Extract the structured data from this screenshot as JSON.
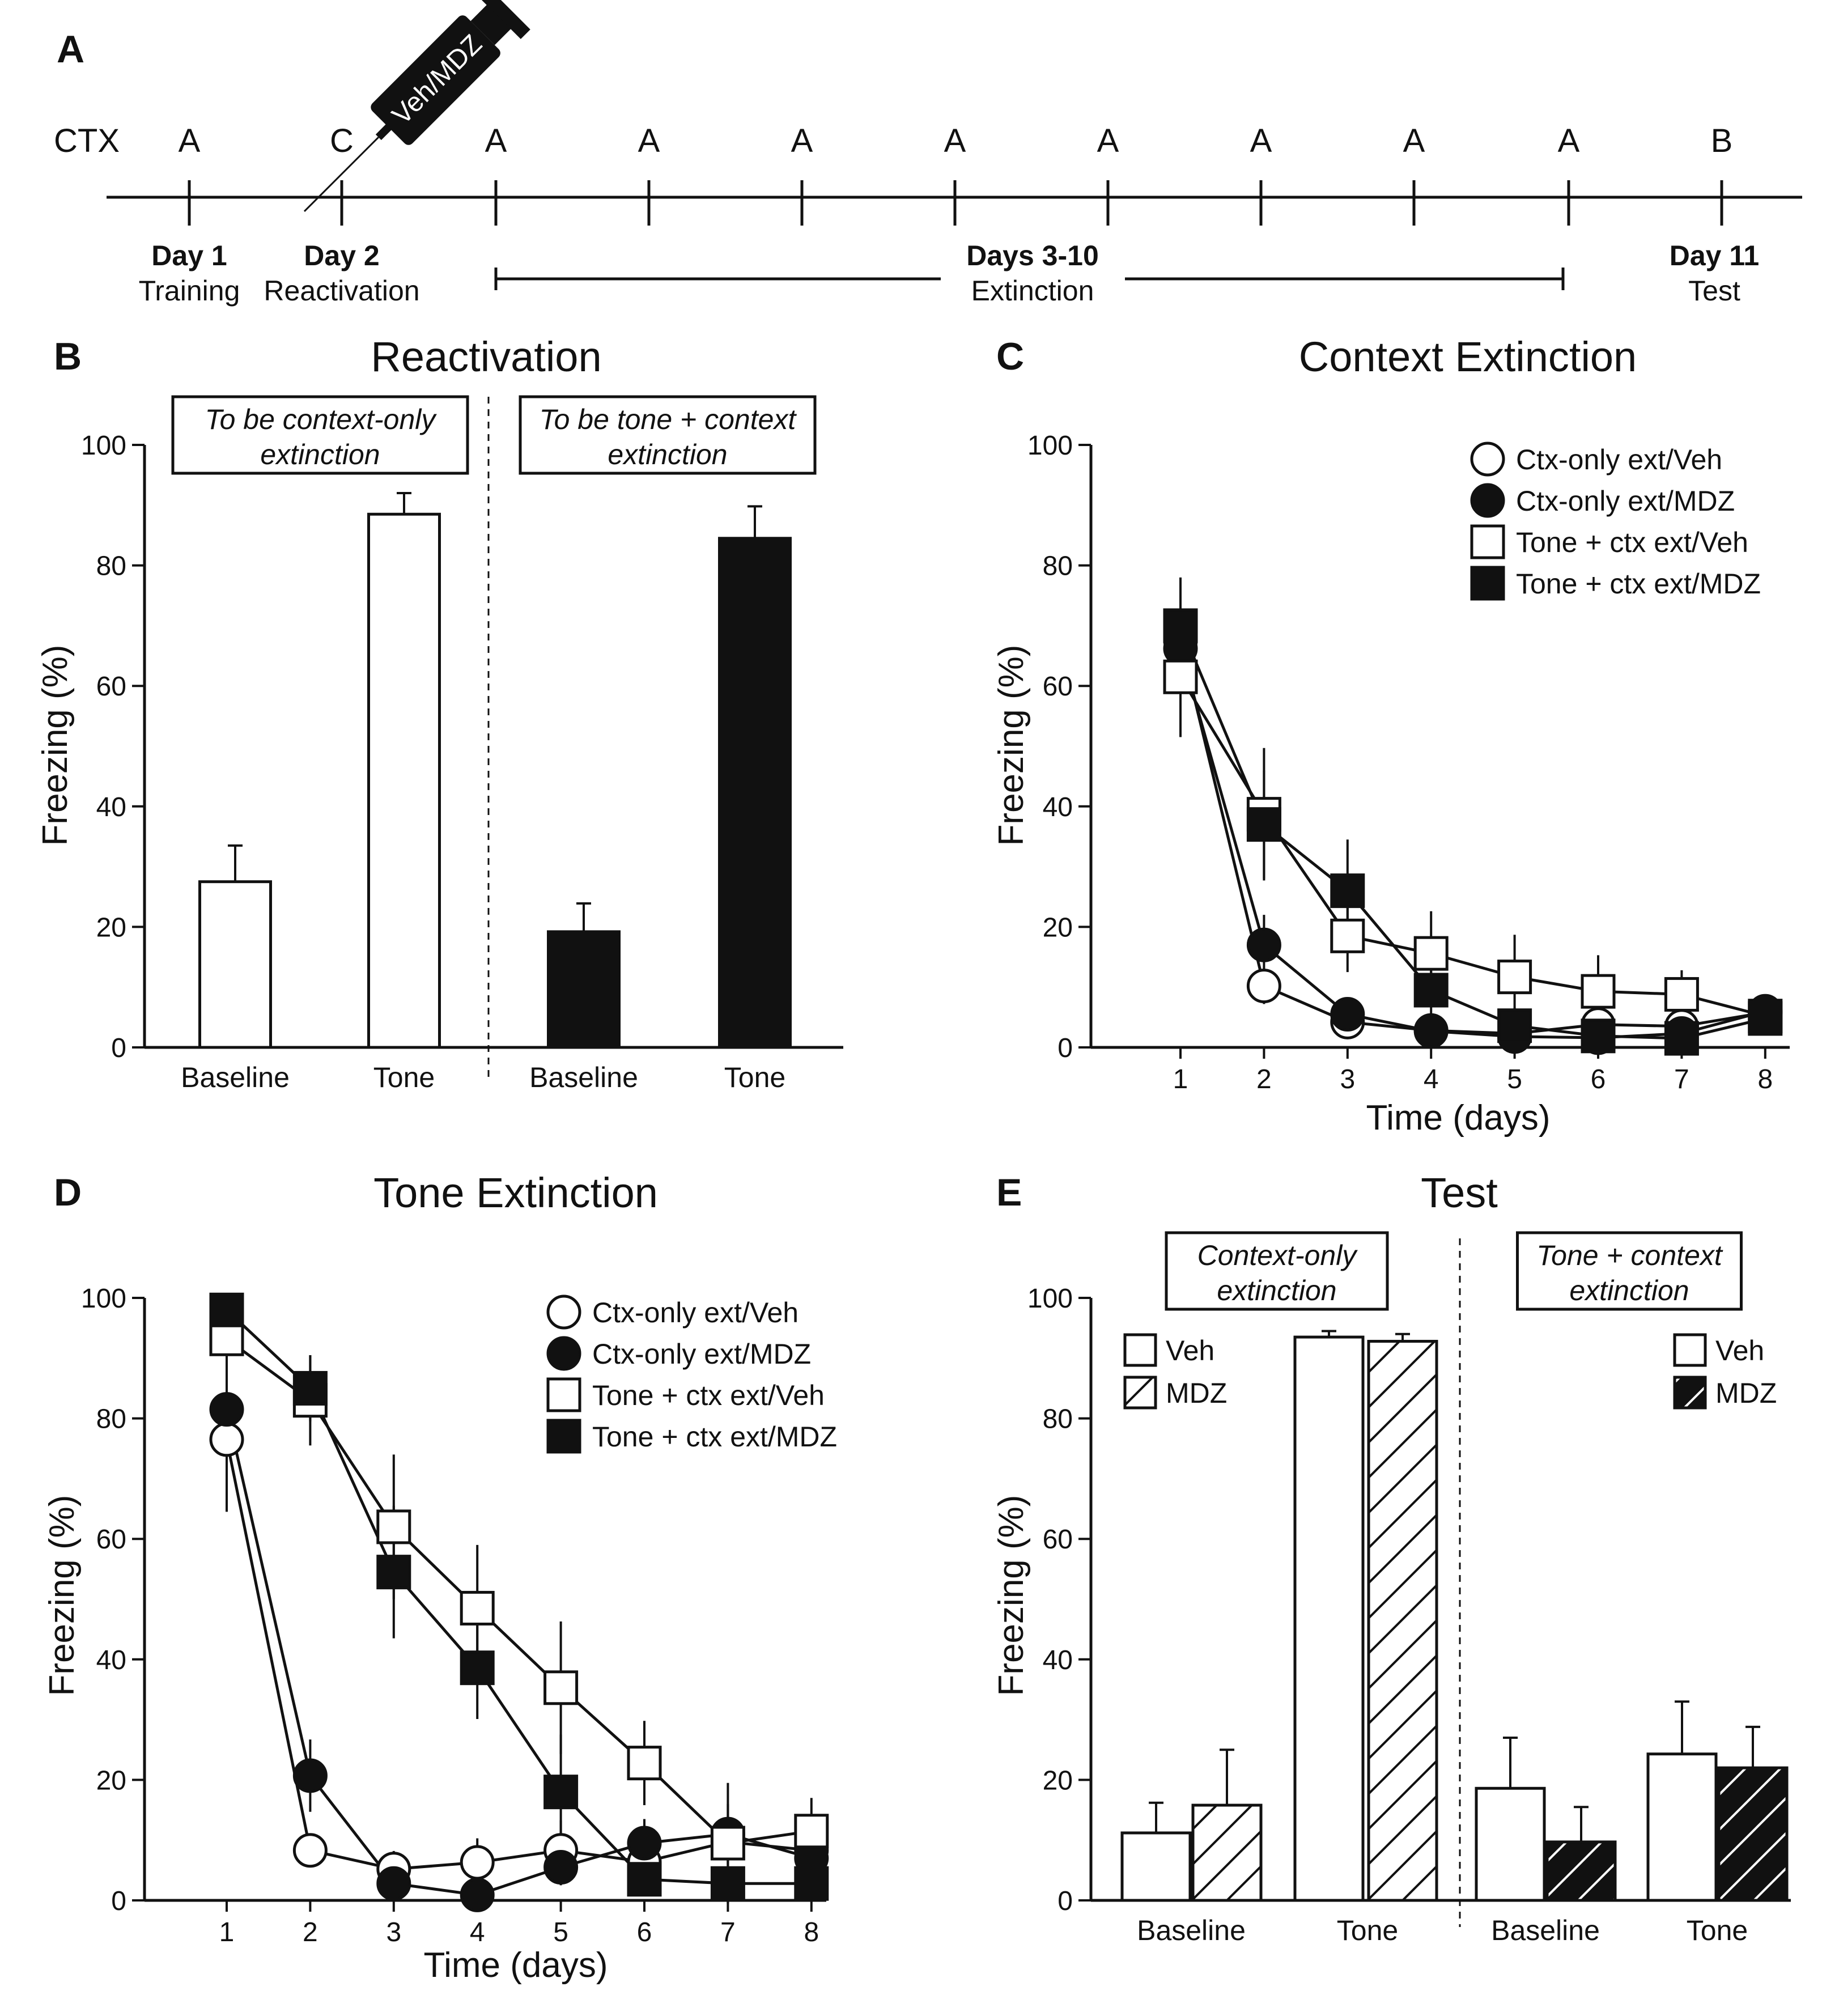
{
  "colors": {
    "ink": "#111111",
    "bar_open": "#ffffff",
    "bar_black": "#111111"
  },
  "panelA": {
    "letter": "A",
    "ctx_label": "CTX",
    "contexts": [
      "A",
      "C",
      "A",
      "A",
      "A",
      "A",
      "A",
      "A",
      "A",
      "A",
      "B"
    ],
    "syringe_label": "Veh/MDZ",
    "day1": {
      "day": "Day 1",
      "phase": "Training"
    },
    "day2": {
      "day": "Day 2",
      "phase": "Reactivation"
    },
    "days3_10": {
      "day": "Days 3-10",
      "phase": "Extinction"
    },
    "day11": {
      "day": "Day 11",
      "phase": "Test"
    }
  },
  "chart_data": [
    {
      "id": "B",
      "letter": "B",
      "type": "bar",
      "title": "Reactivation",
      "ylabel": "Freezing (%)",
      "ylim": [
        0,
        100
      ],
      "yticks": [
        "0",
        "20",
        "40",
        "60",
        "80",
        "100"
      ],
      "group_boxes": [
        "To be context-only\nextinction",
        "To be tone + context\nextinction"
      ],
      "bars": [
        {
          "category": "Baseline",
          "group": "To be context-only extinction",
          "value": 27.5,
          "error": 6,
          "fill": "open"
        },
        {
          "category": "Tone",
          "group": "To be context-only extinction",
          "value": 88.5,
          "error": 3.5,
          "fill": "open"
        },
        {
          "category": "Baseline",
          "group": "To be tone + context extinction",
          "value": 19.2,
          "error": 4.7,
          "fill": "black"
        },
        {
          "category": "Tone",
          "group": "To be tone + context extinction",
          "value": 84.5,
          "error": 5.3,
          "fill": "black"
        }
      ]
    },
    {
      "id": "C",
      "letter": "C",
      "type": "line",
      "title": "Context Extinction",
      "xlabel": "Time (days)",
      "ylabel": "Freezing (%)",
      "x": [
        1,
        2,
        3,
        4,
        5,
        6,
        7,
        8
      ],
      "xticks": [
        "1",
        "2",
        "3",
        "4",
        "5",
        "6",
        "7",
        "8"
      ],
      "ylim": [
        0,
        100
      ],
      "yticks": [
        "0",
        "20",
        "40",
        "60",
        "80",
        "100"
      ],
      "legend_position": "top-right",
      "series": [
        {
          "name": "Ctx-only ext/Veh",
          "marker": "circle-open",
          "values": [
            67.5,
            10.2,
            4.2,
            2.8,
            2.3,
            3.8,
            3.5,
            5.8
          ],
          "errors": [
            5,
            3,
            1.5,
            1,
            1,
            1,
            1,
            1
          ]
        },
        {
          "name": "Ctx-only ext/MDZ",
          "marker": "circle-filled",
          "values": [
            66.2,
            17,
            5.5,
            2.7,
            1.8,
            1.6,
            2.3,
            6
          ],
          "errors": [
            6,
            5,
            2,
            1,
            1,
            1,
            1,
            1
          ]
        },
        {
          "name": "Tone + ctx ext/Veh",
          "marker": "square-open",
          "values": [
            61.5,
            38.7,
            18.5,
            15.6,
            11.7,
            9.3,
            8.8,
            5.2
          ],
          "errors": [
            10,
            11,
            6,
            7,
            7,
            6,
            4,
            2
          ]
        },
        {
          "name": "Tone + ctx ext/MDZ",
          "marker": "square-filled",
          "values": [
            70,
            37,
            26,
            9.5,
            3.6,
            1.9,
            1.5,
            4.8
          ],
          "errors": [
            8,
            9,
            8.5,
            6,
            3,
            1.5,
            1.5,
            2
          ]
        }
      ]
    },
    {
      "id": "D",
      "letter": "D",
      "type": "line",
      "title": "Tone Extinction",
      "xlabel": "Time (days)",
      "ylabel": "Freezing (%)",
      "x": [
        1,
        2,
        3,
        4,
        5,
        6,
        7,
        8
      ],
      "xticks": [
        "1",
        "2",
        "3",
        "4",
        "5",
        "6",
        "7",
        "8"
      ],
      "ylim": [
        0,
        100
      ],
      "yticks": [
        "0",
        "20",
        "40",
        "60",
        "80",
        "100"
      ],
      "legend_position": "top-right",
      "series": [
        {
          "name": "Ctx-only ext/Veh",
          "marker": "circle-open",
          "values": [
            76.5,
            8.3,
            5.2,
            6.3,
            8.3,
            6.4,
            9.7,
            8.3
          ],
          "errors": [
            12,
            2.5,
            3,
            4,
            5,
            4,
            4,
            4
          ]
        },
        {
          "name": "Ctx-only ext/MDZ",
          "marker": "circle-filled",
          "values": [
            81.5,
            20.7,
            2.8,
            0.9,
            5.5,
            9.5,
            11,
            7
          ],
          "errors": [
            9,
            6,
            2,
            1,
            3,
            4,
            5,
            4
          ]
        },
        {
          "name": "Tone + ctx ext/Veh",
          "marker": "square-open",
          "values": [
            93.2,
            83,
            62,
            48.5,
            35.3,
            22.8,
            9.5,
            11.5
          ],
          "errors": [
            3,
            7.5,
            12,
            10.5,
            11,
            7,
            10,
            5.5
          ]
        },
        {
          "name": "Tone + ctx ext/MDZ",
          "marker": "square-filled",
          "values": [
            98,
            85,
            54.5,
            38.6,
            18,
            3.5,
            2.8,
            2.8
          ],
          "errors": [
            1.5,
            5.5,
            11,
            8.5,
            9.5,
            2,
            2,
            2
          ]
        }
      ]
    },
    {
      "id": "E",
      "letter": "E",
      "type": "bar",
      "title": "Test",
      "ylabel": "Freezing (%)",
      "ylim": [
        0,
        100
      ],
      "yticks": [
        "0",
        "20",
        "40",
        "60",
        "80",
        "100"
      ],
      "group_boxes": [
        "Context-only\nextinction",
        "Tone + context\nextinction"
      ],
      "legends": [
        {
          "items": [
            {
              "name": "Veh",
              "fill": "open"
            },
            {
              "name": "MDZ",
              "fill": "hatch-open"
            }
          ]
        },
        {
          "items": [
            {
              "name": "Veh",
              "fill": "open"
            },
            {
              "name": "MDZ",
              "fill": "hatch-black"
            }
          ]
        }
      ],
      "groups": [
        {
          "name": "Context-only extinction",
          "categories": [
            "Baseline",
            "Tone"
          ],
          "Veh": [
            11.2,
            93.5
          ],
          "Veh_err": [
            5,
            1
          ],
          "MDZ": [
            15.8,
            92.8
          ],
          "MDZ_err": [
            9.2,
            1.2
          ]
        },
        {
          "name": "Tone + context extinction",
          "categories": [
            "Baseline",
            "Tone"
          ],
          "Veh": [
            18.6,
            24.3
          ],
          "Veh_err": [
            8.4,
            8.7
          ],
          "MDZ": [
            9.7,
            22
          ],
          "MDZ_err": [
            5.8,
            6.8
          ]
        }
      ]
    }
  ]
}
